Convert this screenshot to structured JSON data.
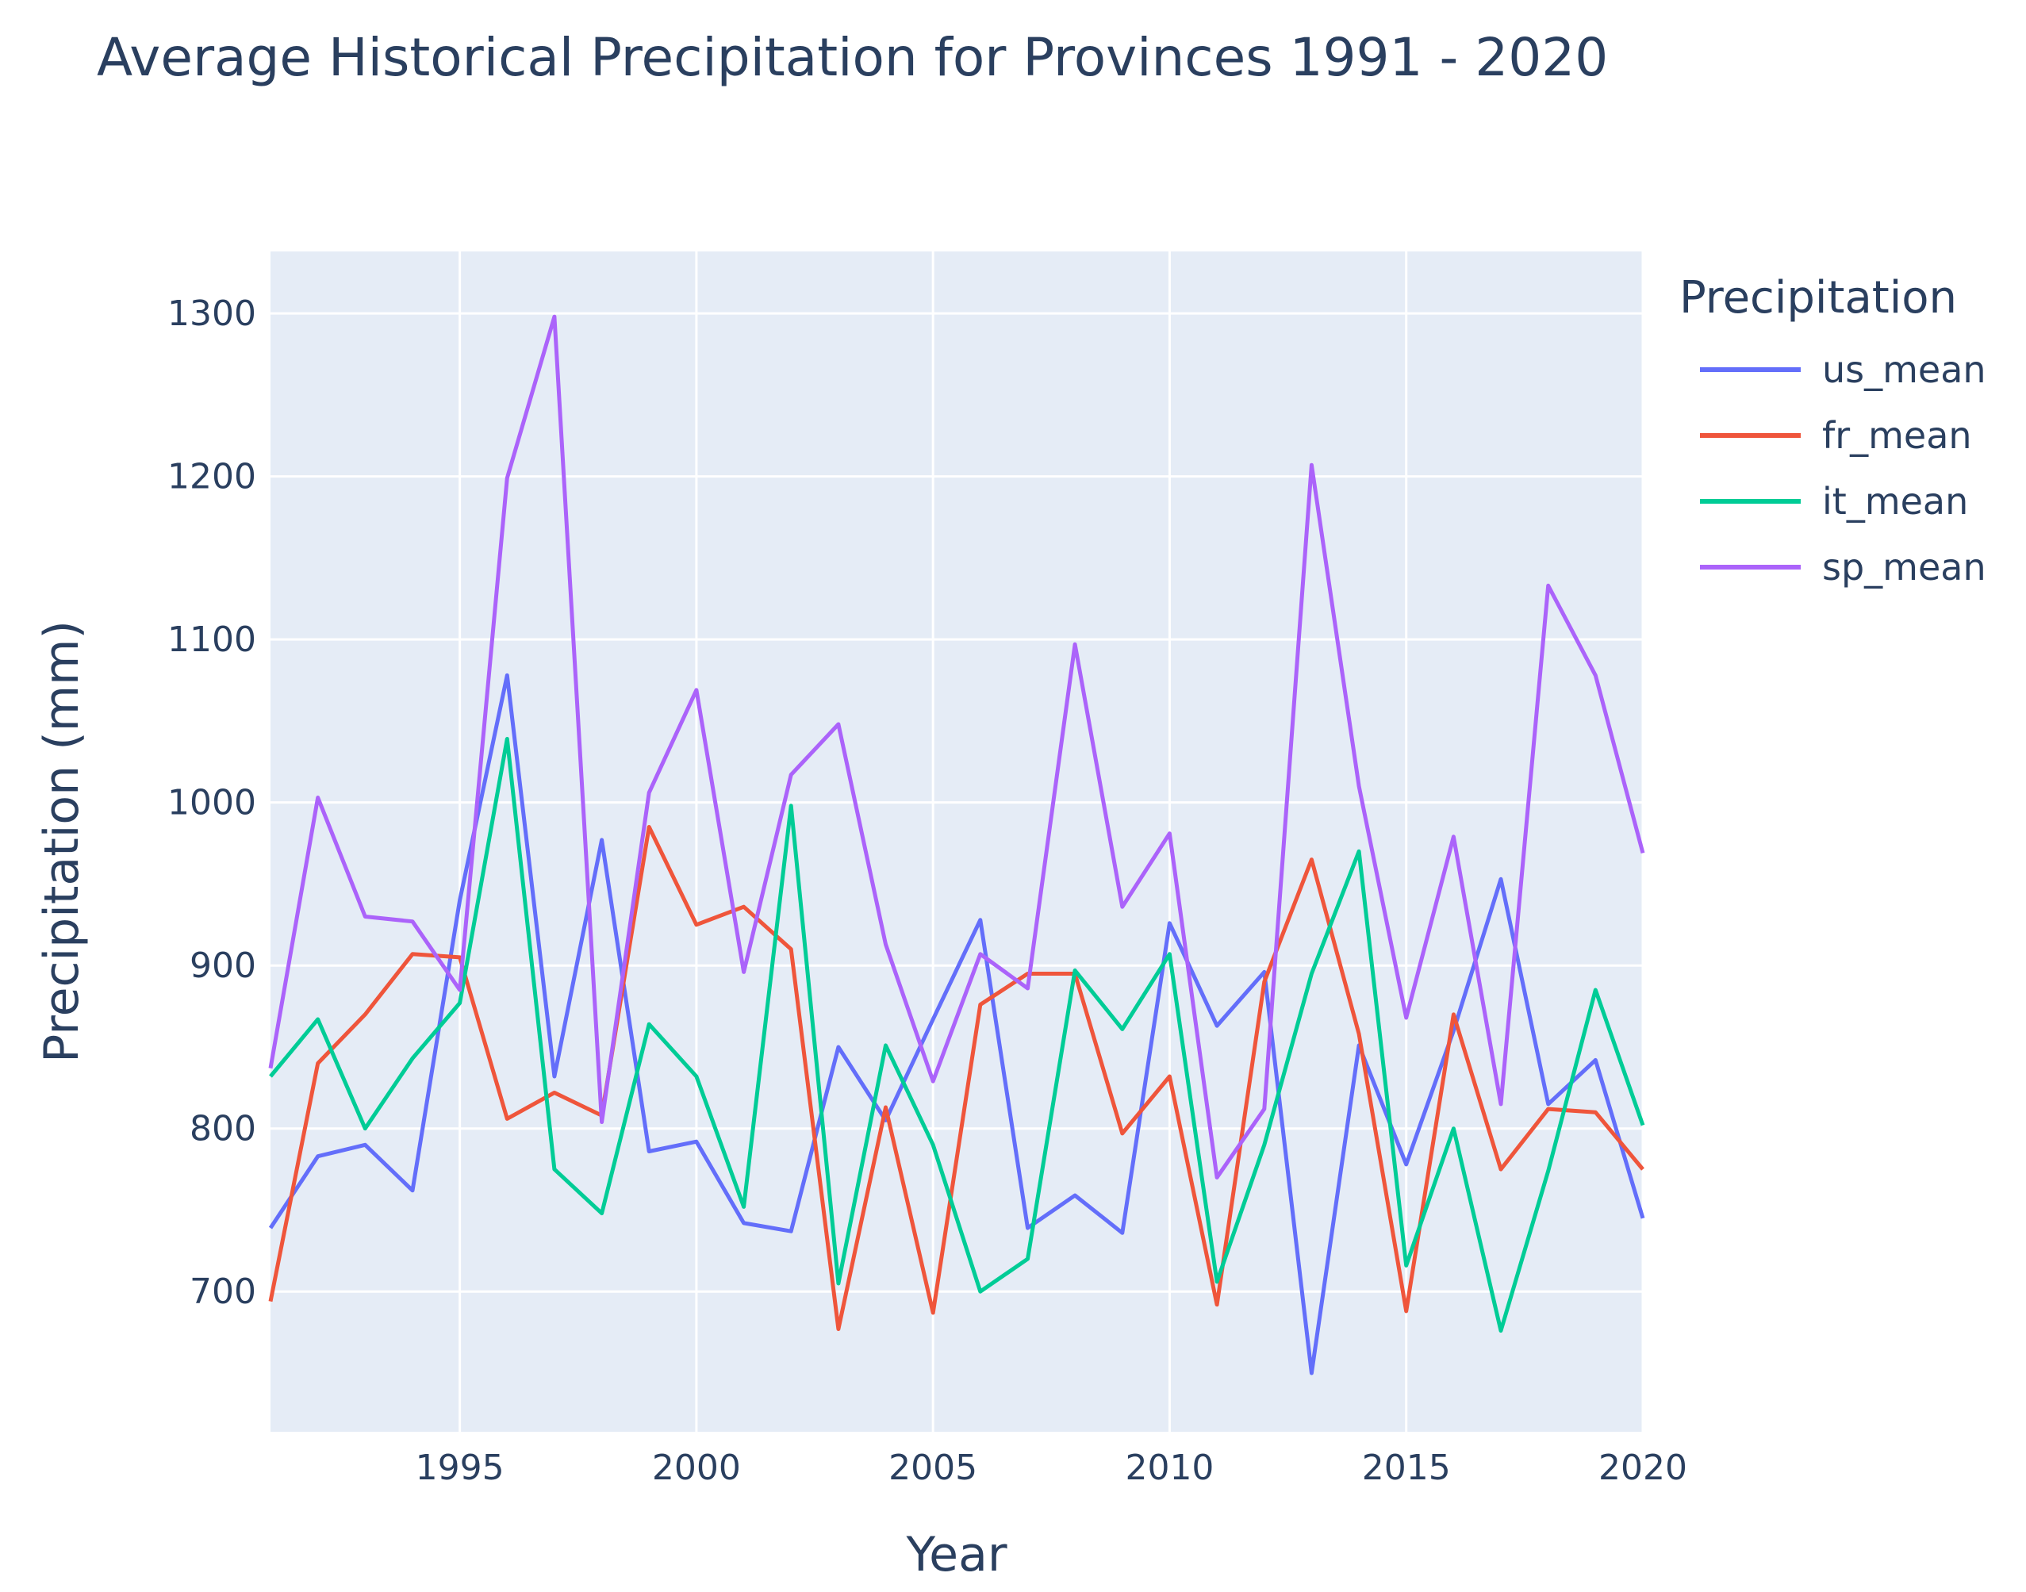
{
  "chart_data": {
    "type": "line",
    "title": "Average Historical Precipitation for Provinces 1991 - 2020",
    "xlabel": "Year",
    "ylabel": "Precipitation (mm)",
    "legend_title": "Precipitation",
    "legend_position": "right",
    "grid": true,
    "xlim": [
      1991,
      2020
    ],
    "ylim": [
      614,
      1338
    ],
    "x_ticks": [
      1995,
      2000,
      2005,
      2010,
      2015,
      2020
    ],
    "y_ticks": [
      700,
      800,
      900,
      1000,
      1100,
      1200,
      1300
    ],
    "x": [
      1991,
      1992,
      1993,
      1994,
      1995,
      1996,
      1997,
      1998,
      1999,
      2000,
      2001,
      2002,
      2003,
      2004,
      2005,
      2006,
      2007,
      2008,
      2009,
      2010,
      2011,
      2012,
      2013,
      2014,
      2015,
      2016,
      2017,
      2018,
      2019,
      2020
    ],
    "series": [
      {
        "name": "us_mean",
        "color": "#636efa",
        "values": [
          739,
          783,
          790,
          762,
          940,
          1078,
          832,
          977,
          786,
          792,
          742,
          737,
          850,
          805,
          867,
          928,
          739,
          759,
          736,
          926,
          863,
          896,
          650,
          851,
          778,
          860,
          953,
          815,
          842,
          745
        ]
      },
      {
        "name": "fr_mean",
        "color": "#ef553b",
        "values": [
          694,
          840,
          870,
          907,
          905,
          806,
          822,
          808,
          985,
          925,
          936,
          910,
          677,
          813,
          687,
          876,
          895,
          895,
          797,
          832,
          692,
          890,
          965,
          858,
          688,
          870,
          775,
          812,
          810,
          775
        ]
      },
      {
        "name": "it_mean",
        "color": "#00cc96",
        "values": [
          832,
          867,
          800,
          843,
          877,
          1039,
          775,
          748,
          864,
          832,
          752,
          998,
          705,
          851,
          790,
          700,
          720,
          897,
          861,
          907,
          706,
          790,
          895,
          970,
          716,
          800,
          676,
          774,
          885,
          802
        ]
      },
      {
        "name": "sp_mean",
        "color": "#ab63fa",
        "values": [
          837,
          1003,
          930,
          927,
          885,
          1199,
          1298,
          804,
          1006,
          1069,
          896,
          1017,
          1048,
          913,
          829,
          907,
          886,
          1097,
          936,
          981,
          770,
          812,
          1207,
          1010,
          868,
          979,
          815,
          1133,
          1078,
          969
        ]
      }
    ]
  }
}
